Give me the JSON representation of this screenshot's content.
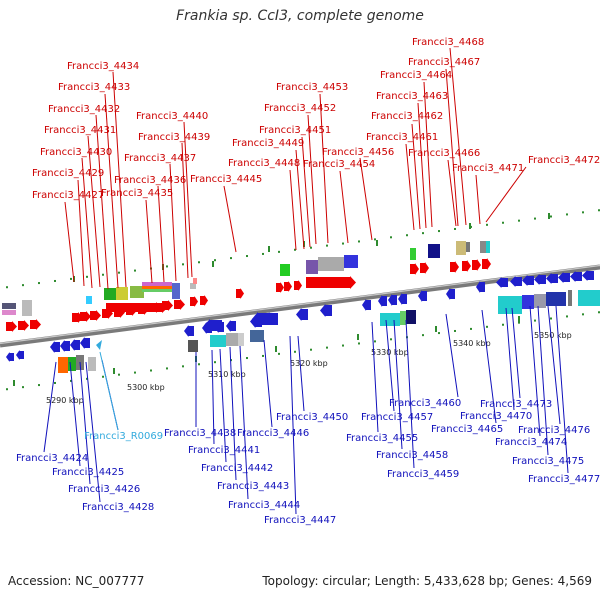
{
  "title": "Frankia sp. CcI3, complete genome",
  "accession": "Accession: NC_007777",
  "topology": "Topology: circular; Length: 5,433,628 bp; Genes: 4,569",
  "colors": {
    "forward": "#ee0000",
    "reverse": "#1f1fcc",
    "rna": "#22aadd",
    "axis": "#888888"
  },
  "scale_labels": [
    "5290 kbp",
    "5300 kbp",
    "5310 kbp",
    "5320 kbp",
    "5330 kbp",
    "5340 kbp",
    "5350 kbp"
  ],
  "top_labels": [
    "Francci3_4427",
    "Francci3_4429",
    "Francci3_4430",
    "Francci3_4431",
    "Francci3_4432",
    "Francci3_4433",
    "Francci3_4434",
    "Francci3_4435",
    "Francci3_4436",
    "Francci3_4437",
    "Francci3_4439",
    "Francci3_4440",
    "Francci3_4445",
    "Francci3_4448",
    "Francci3_4449",
    "Francci3_4451",
    "Francci3_4452",
    "Francci3_4453",
    "Francci3_4454",
    "Francci3_4456",
    "Francci3_4461",
    "Francci3_4462",
    "Francci3_4463",
    "Francci3_4464",
    "Francci3_4466",
    "Francci3_4467",
    "Francci3_4468",
    "Francci3_4471",
    "Francci3_4472"
  ],
  "bottom_labels": [
    "Francci3_4424",
    "Francci3_4425",
    "Francci3_4426",
    "Francci3_4428",
    "Francci3_R0069",
    "Francci3_4438",
    "Francci3_4441",
    "Francci3_4442",
    "Francci3_4443",
    "Francci3_4444",
    "Francci3_4446",
    "Francci3_4447",
    "Francci3_4450",
    "Francci3_4455",
    "Francci3_4457",
    "Francci3_4458",
    "Francci3_4459",
    "Francci3_4460",
    "Francci3_4465",
    "Francci3_4470",
    "Francci3_4473",
    "Francci3_4474",
    "Francci3_4475",
    "Francci3_4476",
    "Francci3_4477"
  ]
}
